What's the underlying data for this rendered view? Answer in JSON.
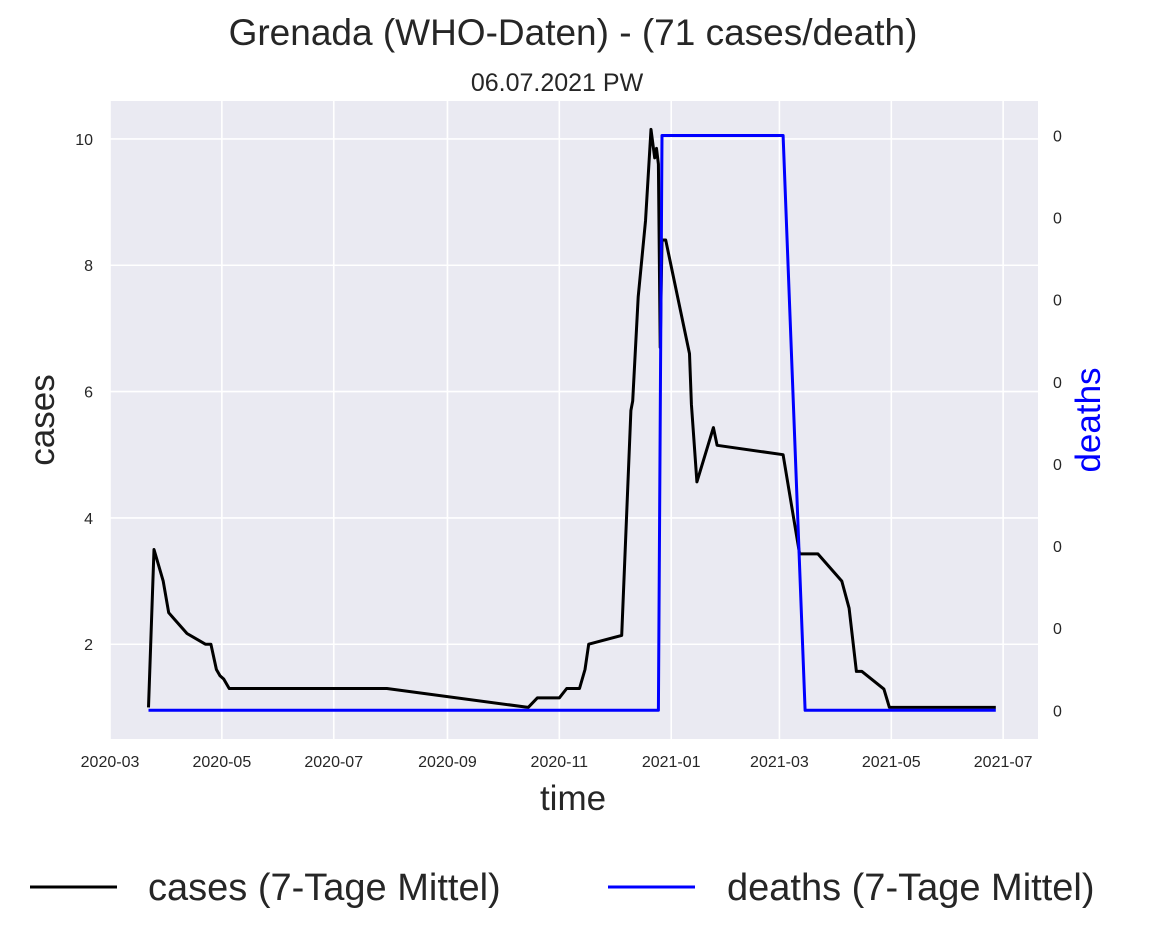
{
  "chart_data": {
    "type": "line",
    "title": "Grenada (WHO-Daten) - (71 cases/death)",
    "subtitle": "06.07.2021 PW",
    "xlabel": "time",
    "ylabel_left": "cases",
    "ylabel_right": "deaths",
    "x_ticks": [
      "2020-03",
      "2020-05",
      "2020-07",
      "2020-09",
      "2020-11",
      "2021-01",
      "2021-03",
      "2021-05",
      "2021-07"
    ],
    "y_ticks_left": [
      "2",
      "4",
      "6",
      "8",
      "10"
    ],
    "y_ticks_right": [
      "0",
      "0",
      "0",
      "0",
      "0",
      "0",
      "0",
      "0"
    ],
    "xlim": [
      "2020-03-01",
      "2021-07-20"
    ],
    "ylim_left": [
      0.5,
      10.6
    ],
    "ylim_right": [
      -0.05,
      1.06
    ],
    "grid": true,
    "legend_position": "bottom",
    "series": [
      {
        "name": "cases (7-Tage Mittel)",
        "axis": "left",
        "color": "#000000",
        "x": [
          "2020-03-22",
          "2020-03-25",
          "2020-03-30",
          "2020-04-02",
          "2020-04-05",
          "2020-04-12",
          "2020-04-22",
          "2020-04-25",
          "2020-04-28",
          "2020-04-30",
          "2020-05-02",
          "2020-05-05",
          "2020-07-30",
          "2020-10-15",
          "2020-10-20",
          "2020-11-01",
          "2020-11-05",
          "2020-11-12",
          "2020-11-15",
          "2020-11-17",
          "2020-12-05",
          "2020-12-10",
          "2020-12-11",
          "2020-12-14",
          "2020-12-18",
          "2020-12-21",
          "2020-12-23",
          "2020-12-24",
          "2020-12-25",
          "2020-12-26",
          "2020-12-27",
          "2020-12-29",
          "2021-01-11",
          "2021-01-12",
          "2021-01-15",
          "2021-01-24",
          "2021-01-26",
          "2021-03-03",
          "2021-03-12",
          "2021-03-15",
          "2021-03-22",
          "2021-04-04",
          "2021-04-08",
          "2021-04-12",
          "2021-04-15",
          "2021-04-27",
          "2021-04-30",
          "2021-06-27"
        ],
        "values": [
          1.0,
          3.5,
          3.0,
          2.5,
          2.4,
          2.17,
          2.0,
          2.0,
          1.6,
          1.5,
          1.45,
          1.3,
          1.3,
          1.0,
          1.15,
          1.15,
          1.3,
          1.3,
          1.6,
          2.0,
          2.14,
          5.7,
          5.85,
          7.5,
          8.7,
          10.15,
          9.7,
          9.85,
          9.6,
          6.7,
          8.4,
          8.4,
          6.6,
          5.8,
          4.57,
          5.43,
          5.15,
          5.0,
          3.43,
          3.43,
          3.43,
          3.0,
          2.57,
          1.57,
          1.57,
          1.29,
          1.0,
          1.0
        ]
      },
      {
        "name": "deaths (7-Tage Mittel)",
        "axis": "right",
        "color": "#0000ff",
        "x": [
          "2020-03-22",
          "2020-12-25",
          "2020-12-27",
          "2021-03-03",
          "2021-03-15",
          "2021-06-27"
        ],
        "values": [
          0.0,
          0.0,
          1.0,
          1.0,
          0.0,
          0.0
        ]
      }
    ]
  }
}
